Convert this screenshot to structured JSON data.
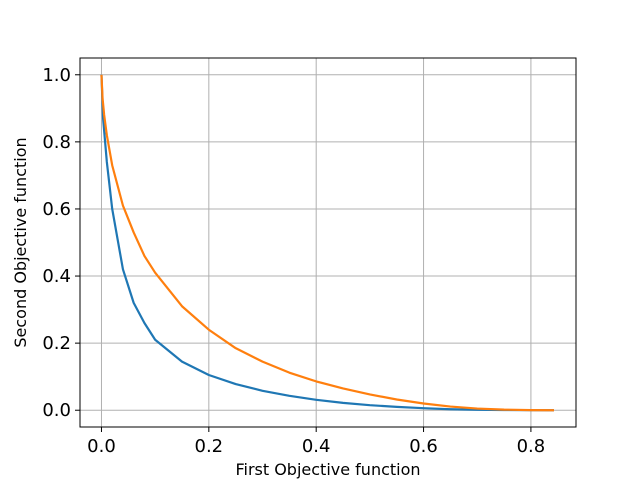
{
  "chart_data": {
    "type": "line",
    "title": "",
    "xlabel": "First Objective function",
    "ylabel": "Second Objective function",
    "xlim": [
      -0.04,
      0.884
    ],
    "ylim": [
      -0.05,
      1.05
    ],
    "xticks": [
      0.0,
      0.2,
      0.4,
      0.6,
      0.8
    ],
    "yticks": [
      0.0,
      0.2,
      0.4,
      0.6,
      0.8,
      1.0
    ],
    "xtick_labels": [
      "0.0",
      "0.2",
      "0.4",
      "0.6",
      "0.8"
    ],
    "ytick_labels": [
      "0.0",
      "0.2",
      "0.4",
      "0.6",
      "0.8",
      "1.0"
    ],
    "grid": true,
    "legend": "none",
    "series": [
      {
        "color": "#1f77b4",
        "x": [
          0.0,
          0.003,
          0.01,
          0.02,
          0.04,
          0.06,
          0.08,
          0.1,
          0.15,
          0.2,
          0.25,
          0.3,
          0.35,
          0.4,
          0.45,
          0.5,
          0.55,
          0.6,
          0.65,
          0.7,
          0.75,
          0.8,
          0.843
        ],
        "y": [
          1.0,
          0.87,
          0.74,
          0.6,
          0.42,
          0.32,
          0.26,
          0.21,
          0.145,
          0.105,
          0.078,
          0.058,
          0.043,
          0.031,
          0.022,
          0.015,
          0.01,
          0.006,
          0.003,
          0.0015,
          0.0005,
          0.0001,
          0.0
        ]
      },
      {
        "color": "#ff7f0e",
        "x": [
          0.0,
          0.002,
          0.005,
          0.01,
          0.02,
          0.04,
          0.06,
          0.08,
          0.1,
          0.15,
          0.2,
          0.25,
          0.3,
          0.35,
          0.4,
          0.45,
          0.5,
          0.55,
          0.6,
          0.65,
          0.7,
          0.75,
          0.8,
          0.843
        ],
        "y": [
          1.0,
          0.93,
          0.88,
          0.82,
          0.73,
          0.61,
          0.53,
          0.46,
          0.41,
          0.31,
          0.24,
          0.185,
          0.145,
          0.112,
          0.086,
          0.065,
          0.047,
          0.032,
          0.02,
          0.011,
          0.005,
          0.0018,
          0.0004,
          0.0
        ]
      }
    ]
  }
}
